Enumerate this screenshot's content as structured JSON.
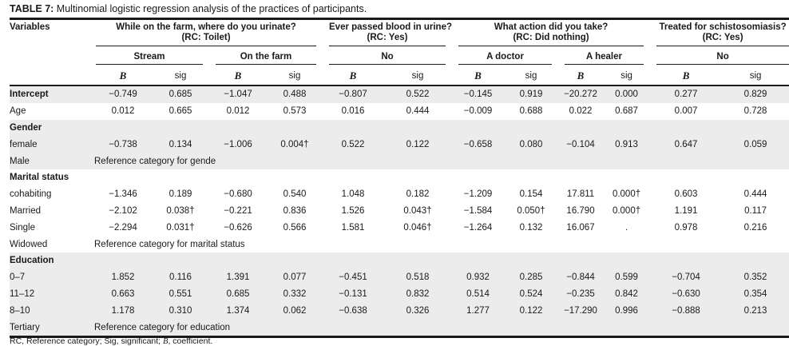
{
  "title": {
    "label": "TABLE 7:",
    "text": " Multinomial logistic regression analysis of the practices of participants."
  },
  "header": {
    "variables": "Variables",
    "groups": [
      {
        "q": "While on the farm, where do you urinate?",
        "rc": "(RC: Toilet)"
      },
      {
        "q": "Ever passed blood in urine?",
        "rc": "(RC: Yes)"
      },
      {
        "q": "What action did you take?",
        "rc": "(RC: Did nothing)"
      },
      {
        "q": "Treated for schistosomiasis?",
        "rc": "(RC: Yes)"
      }
    ],
    "subgroups": [
      "Stream",
      "On the farm",
      "No",
      "A doctor",
      "A healer",
      "No"
    ],
    "b": "B",
    "sig": "sig"
  },
  "rows": [
    {
      "label": "Intercept",
      "type": "data",
      "bold": true,
      "shaded": true,
      "values": [
        "−0.749",
        "0.685",
        "−1.047",
        "0.488",
        "−0.807",
        "0.522",
        "−0.145",
        "0.919",
        "−20.272",
        "0.000",
        "0.277",
        "0.829"
      ]
    },
    {
      "label": "Age",
      "type": "data",
      "shaded": false,
      "values": [
        "0.012",
        "0.665",
        "0.012",
        "0.573",
        "0.016",
        "0.444",
        "−0.009",
        "0.688",
        "0.022",
        "0.687",
        "0.007",
        "0.728"
      ]
    },
    {
      "label": "Gender",
      "type": "group",
      "shaded": true
    },
    {
      "label": "female",
      "type": "data",
      "shaded": true,
      "values": [
        "−0.738",
        "0.134",
        "−1.006",
        "0.004†",
        "0.522",
        "0.122",
        "−0.658",
        "0.080",
        "−0.104",
        "0.913",
        "0.647",
        "0.059"
      ]
    },
    {
      "label": "Male",
      "type": "ref",
      "shaded": true,
      "ref": "Reference category for gende"
    },
    {
      "label": "Marital status",
      "type": "group",
      "shaded": false
    },
    {
      "label": "cohabiting",
      "type": "data",
      "shaded": false,
      "values": [
        "−1.346",
        "0.189",
        "−0.680",
        "0.540",
        "1.048",
        "0.182",
        "−1.209",
        "0.154",
        "17.811",
        "0.000†",
        "0.603",
        "0.444"
      ]
    },
    {
      "label": "Married",
      "type": "data",
      "shaded": false,
      "values": [
        "−2.102",
        "0.038†",
        "−0.221",
        "0.836",
        "1.526",
        "0.043†",
        "−1.584",
        "0.050†",
        "16.790",
        "0.000†",
        "1.191",
        "0.117"
      ]
    },
    {
      "label": "Single",
      "type": "data",
      "shaded": false,
      "values": [
        "−2.294",
        "0.031†",
        "−0.626",
        "0.566",
        "1.581",
        "0.046†",
        "−1.264",
        "0.132",
        "16.067",
        ".",
        "0.978",
        "0.216"
      ]
    },
    {
      "label": "Widowed",
      "type": "ref",
      "shaded": false,
      "ref": "Reference category for marital status"
    },
    {
      "label": "Education",
      "type": "group",
      "shaded": true
    },
    {
      "label": "0–7",
      "type": "data",
      "shaded": true,
      "values": [
        "1.852",
        "0.116",
        "1.391",
        "0.077",
        "−0.451",
        "0.518",
        "0.932",
        "0.285",
        "−0.844",
        "0.599",
        "−0.704",
        "0.352"
      ]
    },
    {
      "label": "11–12",
      "type": "data",
      "shaded": true,
      "values": [
        "0.663",
        "0.551",
        "0.685",
        "0.332",
        "−0.131",
        "0.832",
        "0.514",
        "0.524",
        "−0.235",
        "0.842",
        "−0.630",
        "0.354"
      ]
    },
    {
      "label": "8–10",
      "type": "data",
      "shaded": true,
      "values": [
        "1.178",
        "0.310",
        "1.374",
        "0.062",
        "−0.638",
        "0.326",
        "1.277",
        "0.122",
        "−17.290",
        "0.996",
        "−0.888",
        "0.213"
      ]
    },
    {
      "label": "Tertiary",
      "type": "ref",
      "shaded": true,
      "ref": "Reference category for education"
    }
  ],
  "footnote": {
    "a": "RC, Reference  category; Sig, significant; ",
    "b": "B",
    "c": ", coefficient."
  }
}
